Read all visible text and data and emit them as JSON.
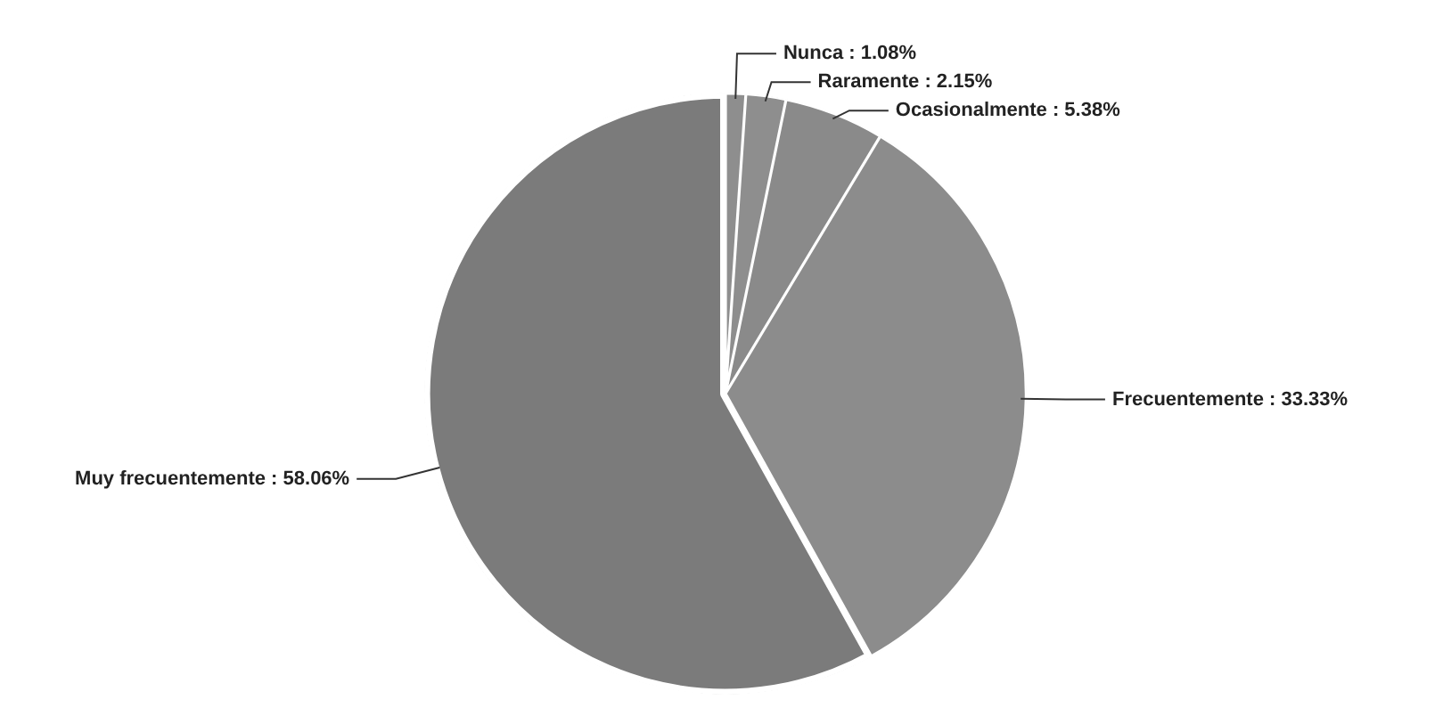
{
  "chart_data": {
    "type": "pie",
    "categories": [
      "Nunca",
      "Raramente",
      "Ocasionalmente",
      "Frecuentemente",
      "Muy frecuentemente"
    ],
    "values": [
      1.08,
      2.15,
      5.38,
      33.33,
      58.06
    ],
    "value_labels": [
      "1.08%",
      "2.15%",
      "5.38%",
      "33.33%",
      "58.06%"
    ],
    "colors": [
      "#8e8e8e",
      "#8e8e8e",
      "#8a8a8a",
      "#8c8c8c",
      "#7b7b7b"
    ],
    "legend": false
  }
}
